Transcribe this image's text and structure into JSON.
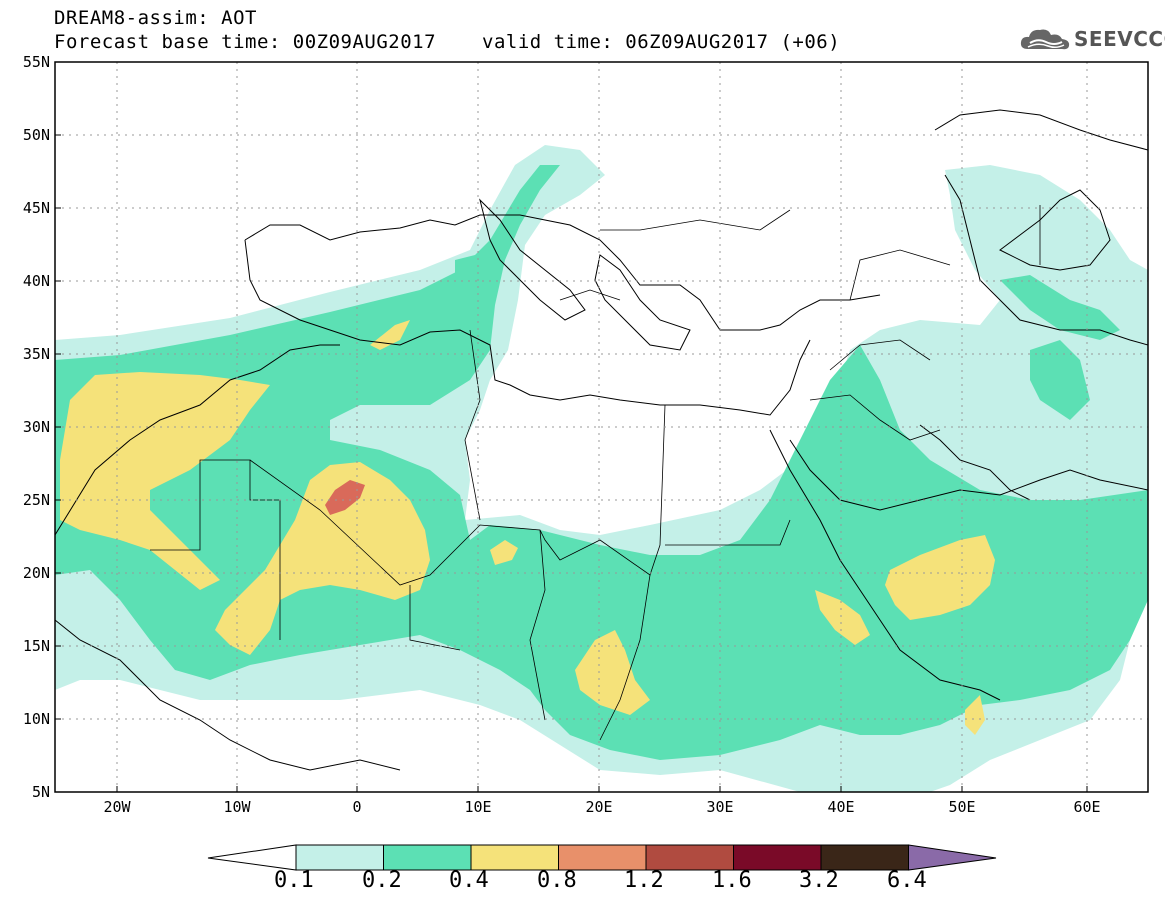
{
  "title_line1": "DREAM8-assim: AOT",
  "title_forecast": "Forecast base time: 00Z09AUG2017",
  "title_valid": "valid time: 06Z09AUG2017 (+06)",
  "logo_text": "SEEVCCC",
  "lat_labels": [
    "55N",
    "50N",
    "45N",
    "40N",
    "35N",
    "30N",
    "25N",
    "20N",
    "15N",
    "10N",
    "5N"
  ],
  "lon_labels": [
    "20W",
    "10W",
    "0",
    "10E",
    "20E",
    "30E",
    "40E",
    "50E",
    "60E"
  ],
  "colorbar": {
    "levels": [
      "0.1",
      "0.2",
      "0.4",
      "0.8",
      "1.2",
      "1.6",
      "3.2",
      "6.4"
    ],
    "colors": [
      "#ffffff",
      "#c4f0e8",
      "#5ce0b4",
      "#f5e27a",
      "#e8906a",
      "#b04b40",
      "#7a0a28",
      "#3a2618",
      "#8a6aa8"
    ]
  },
  "field_colors": {
    "c01": "#c4f0e8",
    "c02": "#5ce0b4",
    "c04": "#f5e27a",
    "c08": "#e8906a",
    "c12": "#d96a5a"
  }
}
